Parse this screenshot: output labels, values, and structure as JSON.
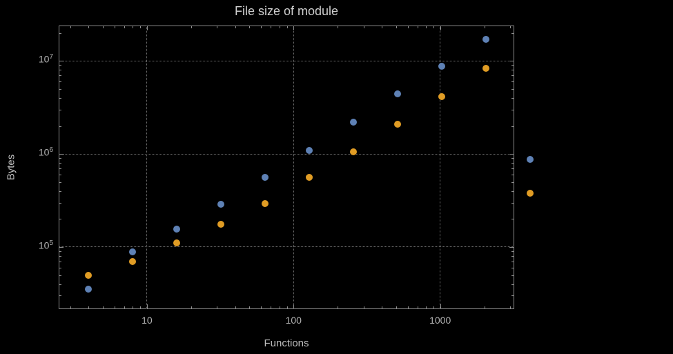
{
  "colors": {
    "background": "#000000",
    "title_text": "#cfcfcf",
    "axis_text": "#bfbfbf",
    "tick_text": "#b3b3b3",
    "frame": "#8f8f8f",
    "grid": "#6f6f6f",
    "series_blue": "#5E81B5",
    "series_orange": "#E09C24"
  },
  "chart_data": {
    "type": "scatter",
    "title": "File size of module",
    "xlabel": "Functions",
    "ylabel": "Bytes",
    "xscale": "log",
    "yscale": "log",
    "grid": "dotted",
    "legend": "none",
    "xlim": [
      2.5,
      3200
    ],
    "ylim": [
      21500,
      24000000
    ],
    "xticks": [
      10,
      100,
      1000
    ],
    "xtick_labels": [
      "10",
      "100",
      "1000"
    ],
    "yticks": [
      100000,
      1000000,
      10000000
    ],
    "ytick_labels": [
      {
        "base": "10",
        "exp": "5"
      },
      {
        "base": "10",
        "exp": "6"
      },
      {
        "base": "10",
        "exp": "7"
      }
    ],
    "x": [
      4,
      8,
      16,
      32,
      64,
      128,
      256,
      512,
      1024,
      2048,
      4096
    ],
    "series": [
      {
        "name": "blue",
        "color": "#5E81B5",
        "values": [
          35000,
          88000,
          155000,
          290000,
          560000,
          1100000,
          2200000,
          4400000,
          8800000,
          17000000,
          870000
        ]
      },
      {
        "name": "orange",
        "color": "#E09C24",
        "values": [
          50000,
          70000,
          110000,
          175000,
          295000,
          560000,
          1050000,
          2100000,
          4100000,
          8300000,
          380000
        ]
      }
    ]
  }
}
